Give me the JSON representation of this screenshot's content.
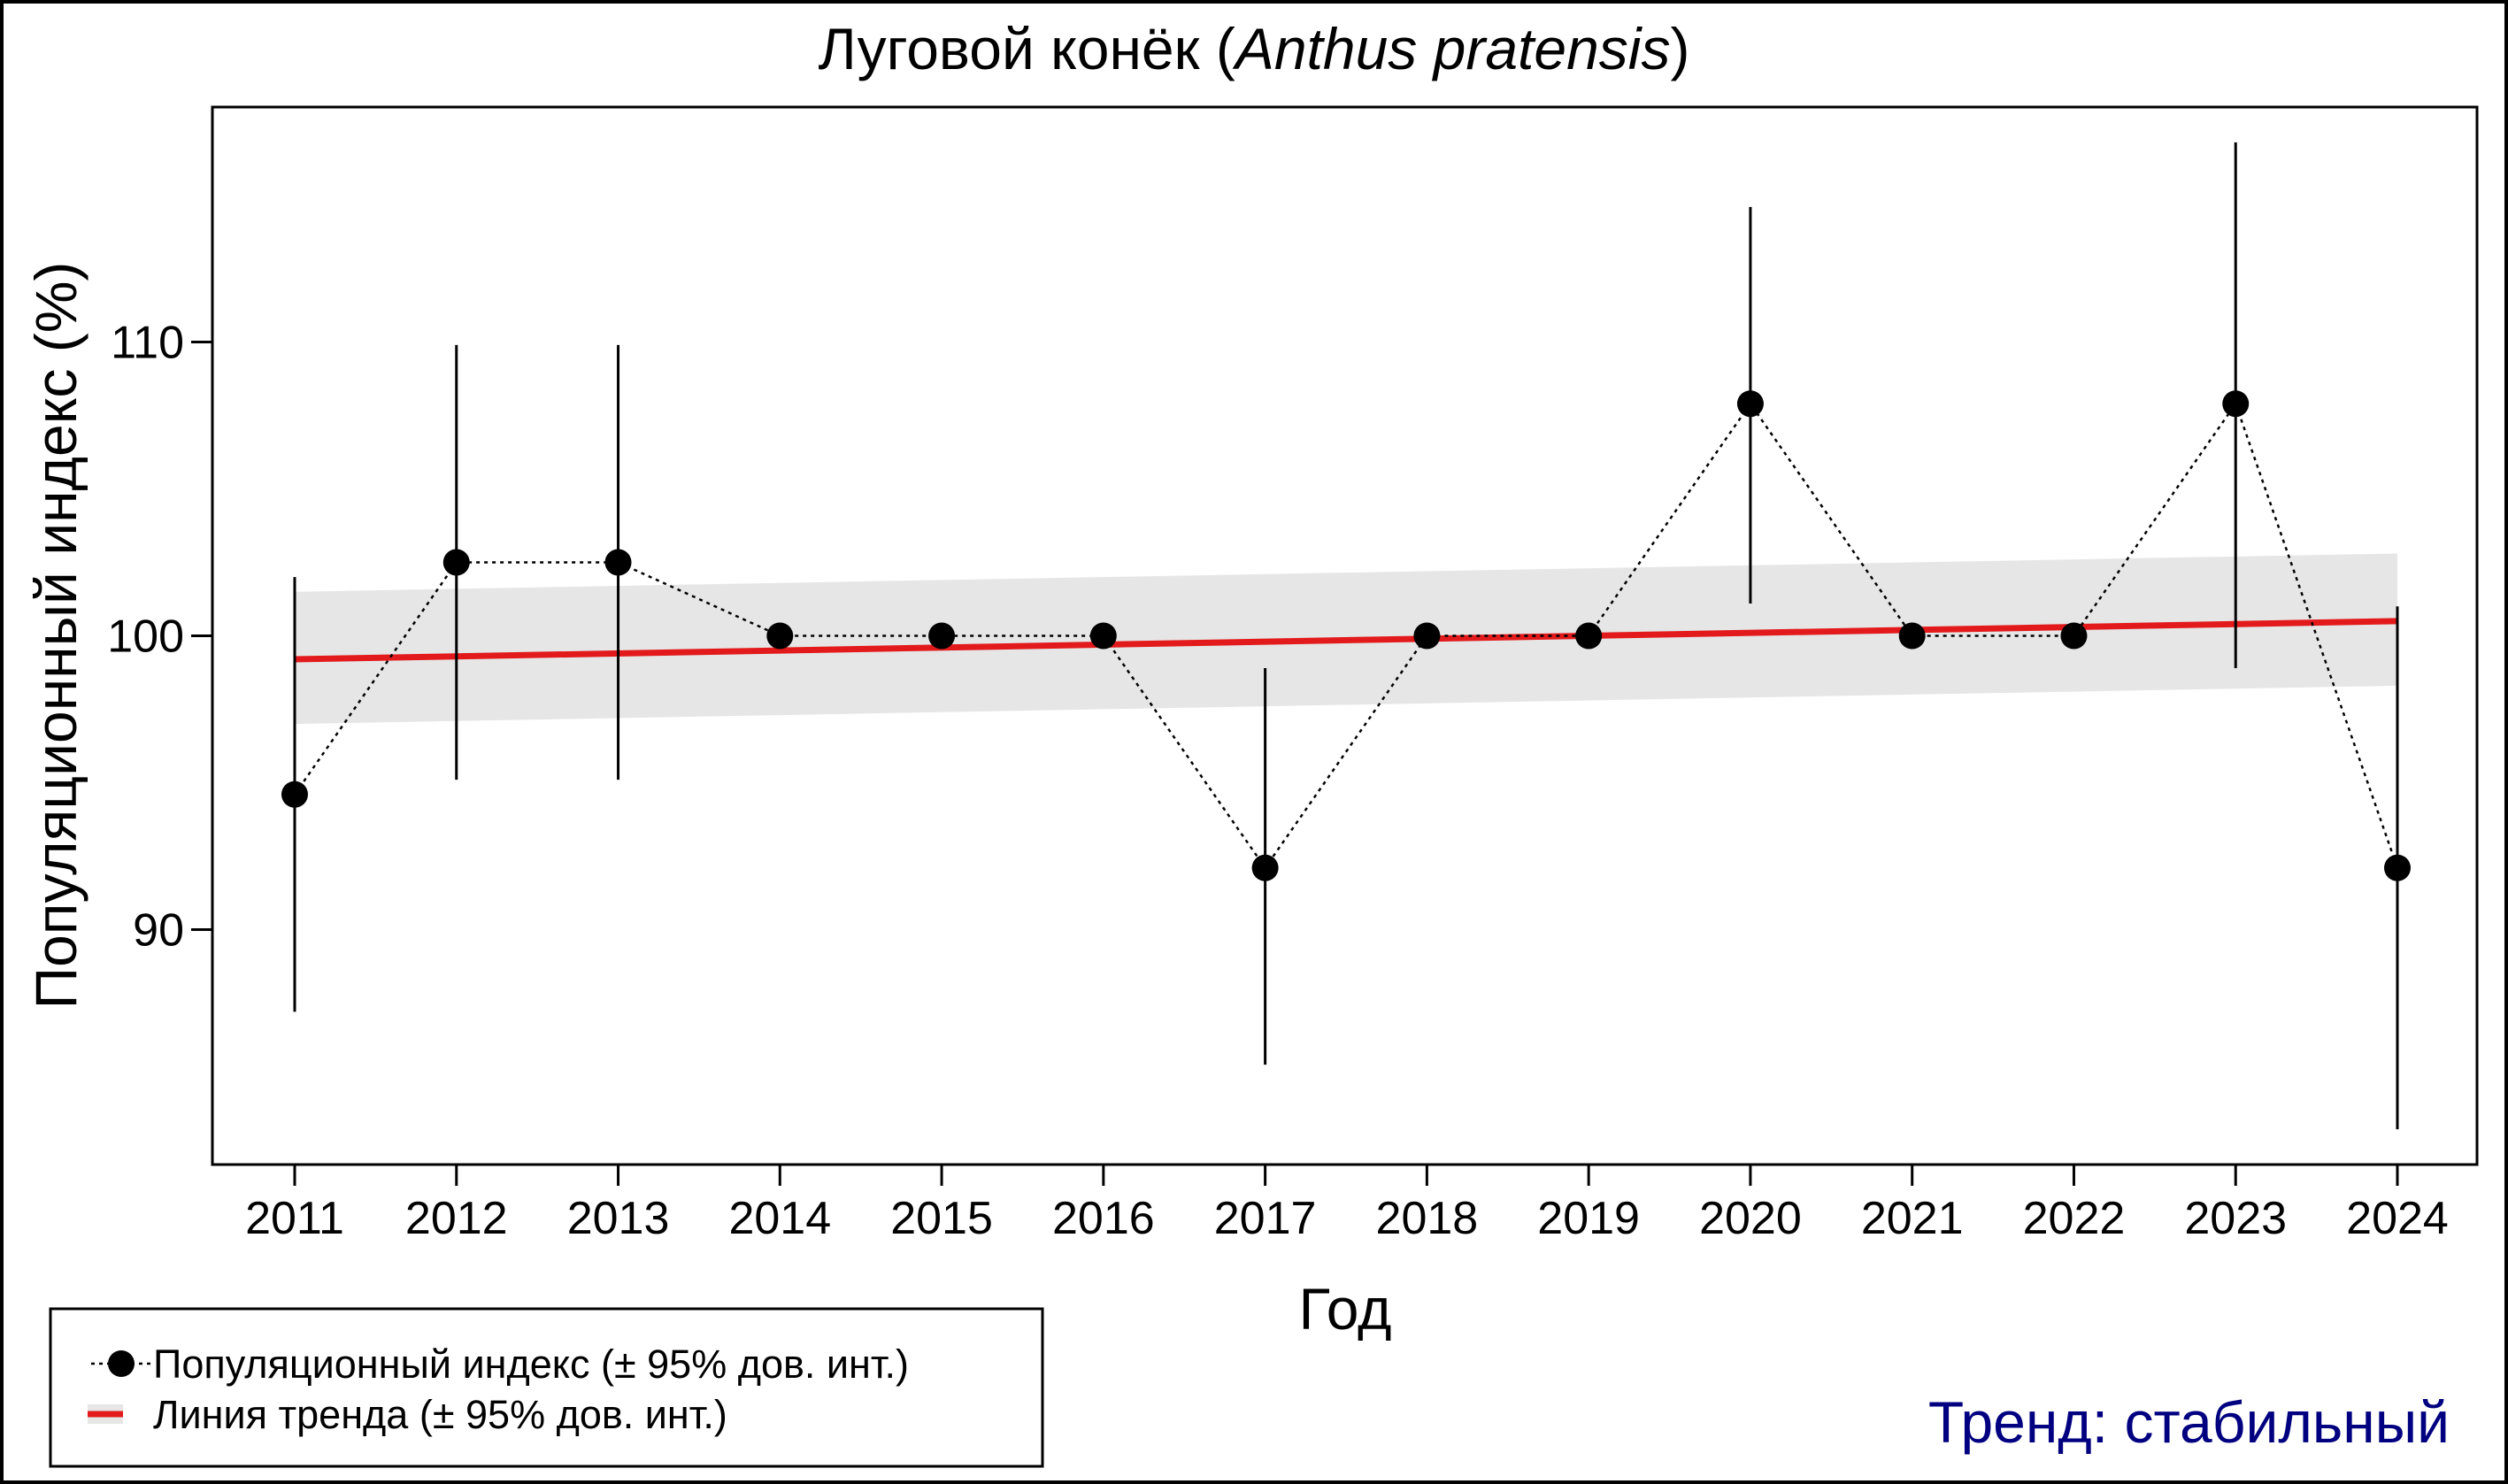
{
  "chart_data": {
    "type": "line",
    "title_main": "Луговой конёк (",
    "title_italic": "Anthus pratensis",
    "title_end": ")",
    "xlabel": "Год",
    "ylabel": "Популяционный индекс (%)",
    "ylim": [
      82,
      118
    ],
    "y_ticks": [
      90,
      100,
      110
    ],
    "x": [
      "2011",
      "2012",
      "2013",
      "2014",
      "2015",
      "2016",
      "2017",
      "2018",
      "2019",
      "2020",
      "2021",
      "2022",
      "2023",
      "2024"
    ],
    "series": [
      {
        "name": "Популяционный индекс (± 95% дов. инт.)",
        "values": [
          94.6,
          102.5,
          102.5,
          100,
          100,
          100,
          92.1,
          100,
          100,
          107.9,
          100,
          100,
          107.9,
          92.1
        ],
        "ci_low": [
          87.2,
          95.1,
          95.1,
          null,
          null,
          null,
          85.4,
          null,
          null,
          101.1,
          null,
          null,
          98.9,
          83.2
        ],
        "ci_high": [
          102.0,
          109.9,
          109.9,
          null,
          null,
          null,
          98.9,
          null,
          null,
          114.6,
          null,
          null,
          116.8,
          101.0
        ]
      },
      {
        "name": "Линия тренда (± 95% дов. инт.)",
        "start": 99.2,
        "end": 100.5,
        "band_low_start": 97.0,
        "band_low_end": 98.3,
        "band_high_start": 101.5,
        "band_high_end": 102.8
      }
    ],
    "legend_position": "bottom-left",
    "grid": false
  },
  "annotation": {
    "text": "Тренд: стабильный",
    "color": "#000080"
  },
  "colors": {
    "trend": "#e31a1c",
    "band": "#e6e6e6",
    "points": "#000000"
  }
}
